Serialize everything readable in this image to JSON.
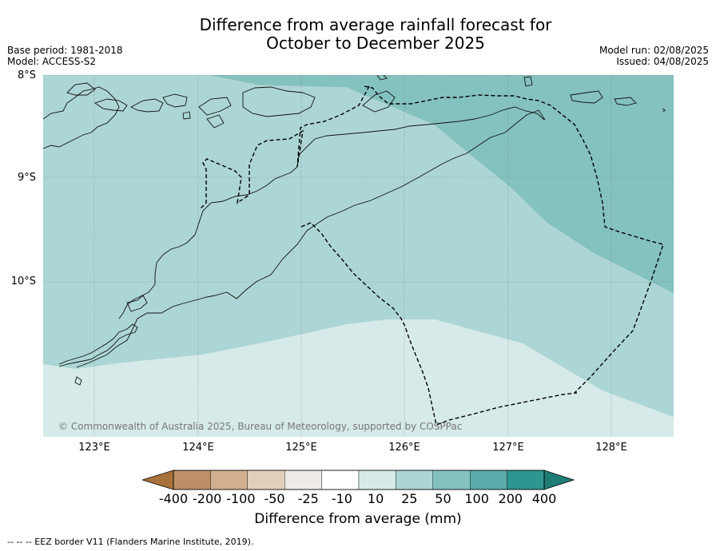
{
  "title": {
    "line1": "Difference from average rainfall forecast for",
    "line2": "October to December 2025"
  },
  "meta": {
    "base_period": "Base period: 1981-2018",
    "model": "Model: ACCESS-S2",
    "model_run": "Model run: 02/08/2025",
    "issued": "Issued: 04/08/2025"
  },
  "map": {
    "lat_labels": [
      "8°S",
      "9°S",
      "10°S"
    ],
    "lon_labels": [
      "123°E",
      "124°E",
      "125°E",
      "126°E",
      "127°E",
      "128°E"
    ],
    "copyright": "© Commonwealth of Australia 2025, Bureau of Meteorology, supported by COSPPac"
  },
  "legend": {
    "ticks": [
      "-400",
      "-200",
      "-100",
      "-50",
      "-25",
      "-10",
      "10",
      "25",
      "50",
      "100",
      "200",
      "400"
    ],
    "colors": [
      "#a8703a",
      "#bd8f66",
      "#d2b08f",
      "#e3cfb9",
      "#eeebe6",
      "#ffffff",
      "#d6eae9",
      "#acd6d5",
      "#84c2c0",
      "#5aaba9",
      "#2e9590",
      "#1f7c76"
    ],
    "title": "Difference from average (mm)"
  },
  "footnote": "--  --  -- EEZ border V11 (Flanders Marine Institute, 2019)."
}
